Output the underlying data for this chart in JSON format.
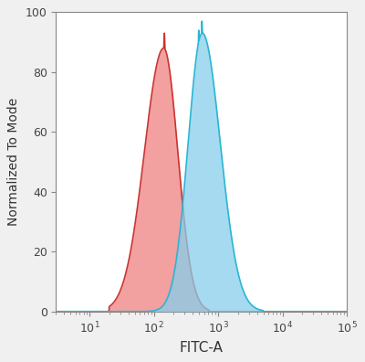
{
  "title": "",
  "xlabel": "FITC-A",
  "ylabel": "Normalized To Mode",
  "xlim_log": [
    3,
    100000
  ],
  "ylim": [
    0,
    100
  ],
  "yticks": [
    0,
    20,
    40,
    60,
    80,
    100
  ],
  "xticks_log": [
    10,
    100,
    1000,
    10000,
    100000
  ],
  "red_fill_color": "#F08080",
  "red_line_color": "#CC3333",
  "blue_fill_color": "#87CEEB",
  "blue_line_color": "#29B6D4",
  "fill_alpha": 0.75,
  "background_color": "#FFFFFF",
  "fig_bg_color": "#F0F0F0"
}
